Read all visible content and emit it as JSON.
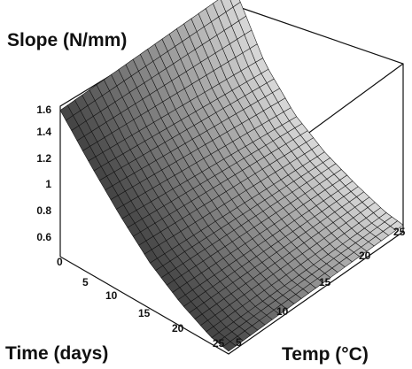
{
  "chart_data": {
    "type": "surface",
    "z_title": "Slope (N/mm)",
    "x_title": "Time (days)",
    "y_title": "Temp (°C)",
    "z_ticks": [
      "0.6",
      "0.8",
      "1",
      "1.2",
      "1.4",
      "1.6"
    ],
    "time_ticks": [
      "0",
      "5",
      "10",
      "15",
      "20",
      "25"
    ],
    "temp_ticks": [
      "5",
      "10",
      "15",
      "20",
      "25"
    ],
    "time_range": [
      0,
      28
    ],
    "temp_range": [
      4,
      25
    ],
    "z_range": [
      0.55,
      1.65
    ],
    "surface_samples": {
      "time": [
        0,
        5,
        10,
        15,
        20,
        25,
        28
      ],
      "temp": [
        4,
        10,
        15,
        20,
        25
      ],
      "slope_at_temp_4": [
        1.62,
        1.35,
        1.1,
        0.88,
        0.72,
        0.6,
        0.57
      ],
      "slope_at_temp_25": [
        1.62,
        1.2,
        0.95,
        0.8,
        0.7,
        0.62,
        0.6
      ],
      "slope_at_time_0": [
        1.62,
        1.62,
        1.62,
        1.62,
        1.62
      ]
    }
  }
}
